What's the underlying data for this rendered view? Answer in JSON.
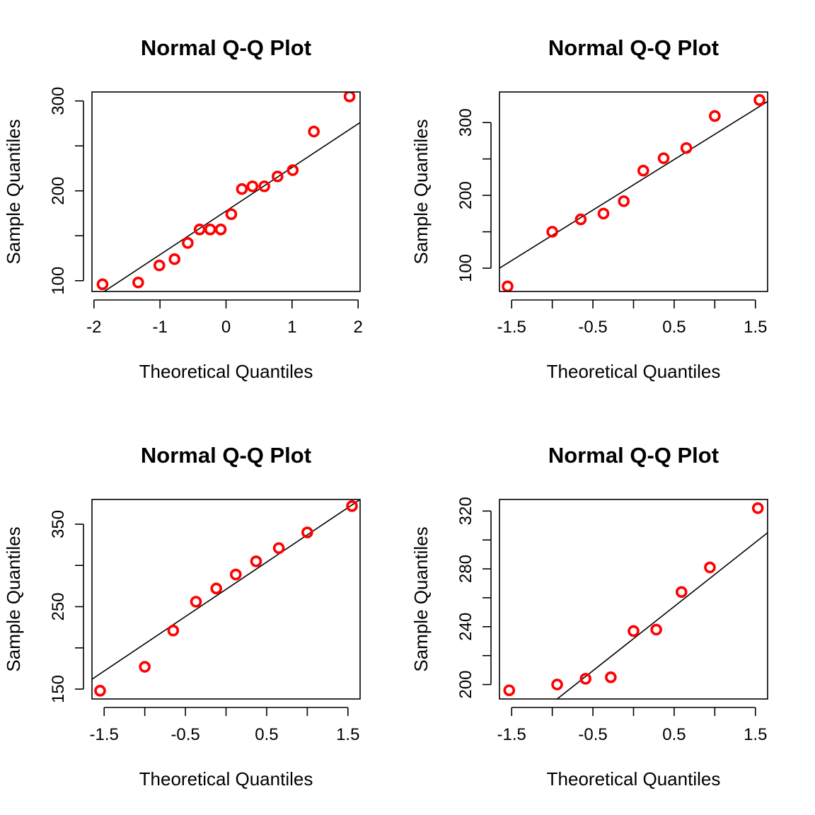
{
  "chart_data": [
    {
      "type": "scatter",
      "title": "Normal Q-Q Plot",
      "xlabel": "Theoretical Quantiles",
      "ylabel": "Sample Quantiles",
      "xlim": [
        -2.03,
        2.03
      ],
      "ylim": [
        88,
        310
      ],
      "xticks": [
        -2,
        -1,
        0,
        1,
        2
      ],
      "xtick_labels": [
        "-2",
        "-1",
        "0",
        "1",
        "2"
      ],
      "yticks": [
        100,
        150,
        200,
        250,
        300
      ],
      "ytick_labels": [
        "100",
        "",
        "200",
        "",
        "300"
      ],
      "points": {
        "x": [
          -1.87,
          -1.33,
          -1.01,
          -0.78,
          -0.58,
          -0.4,
          -0.24,
          -0.08,
          0.08,
          0.24,
          0.4,
          0.58,
          0.78,
          1.01,
          1.33,
          1.87
        ],
        "y": [
          96,
          98,
          117,
          124,
          142,
          157,
          157,
          157,
          174,
          202,
          205,
          205,
          216,
          223,
          266,
          305
        ]
      },
      "line": {
        "x": [
          -2.03,
          2.03
        ],
        "y": [
          79,
          276
        ]
      },
      "point_color": "#ff0000",
      "line_color": "#000000",
      "grid": false
    },
    {
      "type": "scatter",
      "title": "Normal Q-Q Plot",
      "xlabel": "Theoretical Quantiles",
      "ylabel": "Sample Quantiles",
      "xlim": [
        -1.65,
        1.65
      ],
      "ylim": [
        68,
        342
      ],
      "xticks": [
        -1.5,
        -1.0,
        -0.5,
        0.0,
        0.5,
        1.0,
        1.5
      ],
      "xtick_labels": [
        "-1.5",
        "",
        "-0.5",
        "",
        "0.5",
        "",
        "1.5"
      ],
      "yticks": [
        100,
        150,
        200,
        250,
        300
      ],
      "ytick_labels": [
        "100",
        "",
        "200",
        "",
        "300"
      ],
      "points": {
        "x": [
          -1.55,
          -1.0,
          -0.65,
          -0.37,
          -0.12,
          0.12,
          0.37,
          0.65,
          1.0,
          1.55
        ],
        "y": [
          75,
          150,
          167,
          175,
          192,
          234,
          251,
          265,
          309,
          331
        ]
      },
      "line": {
        "x": [
          -1.65,
          1.65
        ],
        "y": [
          100,
          329
        ]
      },
      "point_color": "#ff0000",
      "line_color": "#000000",
      "grid": false
    },
    {
      "type": "scatter",
      "title": "Normal Q-Q Plot",
      "xlabel": "Theoretical Quantiles",
      "ylabel": "Sample Quantiles",
      "xlim": [
        -1.65,
        1.65
      ],
      "ylim": [
        138,
        380
      ],
      "xticks": [
        -1.5,
        -1.0,
        -0.5,
        0.0,
        0.5,
        1.0,
        1.5
      ],
      "xtick_labels": [
        "-1.5",
        "",
        "-0.5",
        "",
        "0.5",
        "",
        "1.5"
      ],
      "yticks": [
        150,
        200,
        250,
        300,
        350
      ],
      "ytick_labels": [
        "150",
        "",
        "250",
        "",
        "350"
      ],
      "points": {
        "x": [
          -1.55,
          -1.0,
          -0.65,
          -0.37,
          -0.12,
          0.12,
          0.37,
          0.65,
          1.0,
          1.55
        ],
        "y": [
          148,
          177,
          221,
          256,
          272,
          289,
          305,
          321,
          340,
          372
        ]
      },
      "line": {
        "x": [
          -1.65,
          1.65
        ],
        "y": [
          162,
          380
        ]
      },
      "point_color": "#ff0000",
      "line_color": "#000000",
      "grid": false
    },
    {
      "type": "scatter",
      "title": "Normal Q-Q Plot",
      "xlabel": "Theoretical Quantiles",
      "ylabel": "Sample Quantiles",
      "xlim": [
        -1.65,
        1.65
      ],
      "ylim": [
        190,
        328
      ],
      "xticks": [
        -1.5,
        -1.0,
        -0.5,
        0.0,
        0.5,
        1.0,
        1.5
      ],
      "xtick_labels": [
        "-1.5",
        "",
        "-0.5",
        "",
        "0.5",
        "",
        "1.5"
      ],
      "yticks": [
        200,
        220,
        240,
        260,
        280,
        300,
        320
      ],
      "ytick_labels": [
        "200",
        "",
        "240",
        "",
        "280",
        "",
        "320"
      ],
      "points": {
        "x": [
          -1.53,
          -0.94,
          -0.59,
          -0.28,
          0.0,
          0.28,
          0.59,
          0.94,
          1.53
        ],
        "y": [
          196,
          200,
          204,
          205,
          237,
          238,
          264,
          281,
          322
        ]
      },
      "line": {
        "x": [
          -0.94,
          1.65
        ],
        "y": [
          190,
          305
        ]
      },
      "point_color": "#ff0000",
      "line_color": "#000000",
      "grid": false
    }
  ]
}
